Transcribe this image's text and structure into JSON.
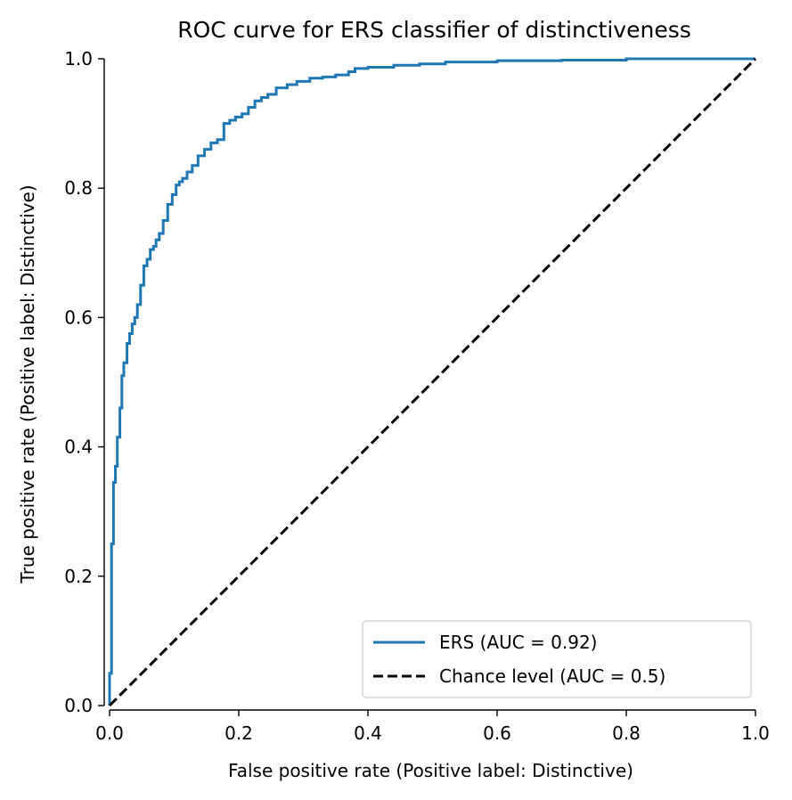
{
  "chart_data": {
    "type": "line",
    "title": "ROC curve for ERS classifier of distinctiveness",
    "xlabel": "False positive rate (Positive label: Distinctive)",
    "ylabel": "True positive rate (Positive label: Distinctive)",
    "xlim": [
      0.0,
      1.0
    ],
    "ylim": [
      0.0,
      1.0
    ],
    "xticks": [
      0.0,
      0.2,
      0.4,
      0.6,
      0.8,
      1.0
    ],
    "xtick_labels": [
      "0.0",
      "0.2",
      "0.4",
      "0.6",
      "0.8",
      "1.0"
    ],
    "yticks": [
      0.0,
      0.2,
      0.4,
      0.6,
      0.8,
      1.0
    ],
    "ytick_labels": [
      "0.0",
      "0.2",
      "0.4",
      "0.6",
      "0.8",
      "1.0"
    ],
    "grid": false,
    "legend_position": "lower-right",
    "series": [
      {
        "name": "ERS (AUC = 0.92)",
        "color": "#1f77b4",
        "style": "steps",
        "x": [
          0.0,
          0.0,
          0.003,
          0.003,
          0.006,
          0.006,
          0.009,
          0.009,
          0.012,
          0.012,
          0.016,
          0.016,
          0.019,
          0.019,
          0.022,
          0.022,
          0.027,
          0.027,
          0.031,
          0.031,
          0.035,
          0.035,
          0.039,
          0.039,
          0.043,
          0.043,
          0.048,
          0.048,
          0.053,
          0.053,
          0.058,
          0.058,
          0.063,
          0.063,
          0.068,
          0.068,
          0.072,
          0.072,
          0.077,
          0.077,
          0.083,
          0.083,
          0.09,
          0.09,
          0.097,
          0.097,
          0.103,
          0.103,
          0.108,
          0.108,
          0.113,
          0.113,
          0.12,
          0.12,
          0.128,
          0.128,
          0.137,
          0.137,
          0.147,
          0.147,
          0.157,
          0.157,
          0.167,
          0.167,
          0.177,
          0.177,
          0.186,
          0.186,
          0.195,
          0.195,
          0.205,
          0.205,
          0.215,
          0.215,
          0.225,
          0.225,
          0.235,
          0.235,
          0.245,
          0.245,
          0.258,
          0.258,
          0.275,
          0.275,
          0.29,
          0.29,
          0.31,
          0.31,
          0.33,
          0.33,
          0.35,
          0.35,
          0.37,
          0.37,
          0.38,
          0.38,
          0.4,
          0.4,
          0.44,
          0.44,
          0.48,
          0.48,
          0.52,
          0.52,
          0.6,
          0.6,
          0.7,
          0.7,
          0.8,
          0.8,
          0.9,
          0.9,
          1.0
        ],
        "y": [
          0.0,
          0.05,
          0.05,
          0.25,
          0.25,
          0.345,
          0.345,
          0.37,
          0.37,
          0.415,
          0.415,
          0.46,
          0.46,
          0.51,
          0.51,
          0.53,
          0.53,
          0.56,
          0.56,
          0.575,
          0.575,
          0.59,
          0.59,
          0.6,
          0.6,
          0.62,
          0.62,
          0.65,
          0.65,
          0.68,
          0.68,
          0.69,
          0.69,
          0.705,
          0.705,
          0.71,
          0.71,
          0.72,
          0.72,
          0.73,
          0.73,
          0.75,
          0.75,
          0.775,
          0.775,
          0.79,
          0.79,
          0.805,
          0.805,
          0.81,
          0.81,
          0.815,
          0.815,
          0.825,
          0.825,
          0.835,
          0.835,
          0.85,
          0.85,
          0.86,
          0.86,
          0.87,
          0.87,
          0.875,
          0.875,
          0.9,
          0.9,
          0.905,
          0.905,
          0.91,
          0.91,
          0.915,
          0.915,
          0.925,
          0.925,
          0.935,
          0.935,
          0.94,
          0.94,
          0.945,
          0.945,
          0.955,
          0.955,
          0.96,
          0.96,
          0.965,
          0.965,
          0.97,
          0.97,
          0.972,
          0.972,
          0.975,
          0.975,
          0.98,
          0.98,
          0.985,
          0.985,
          0.987,
          0.987,
          0.99,
          0.99,
          0.992,
          0.992,
          0.995,
          0.995,
          0.997,
          0.997,
          0.998,
          0.998,
          1.0,
          1.0,
          1.0,
          1.0
        ]
      },
      {
        "name": "Chance level (AUC = 0.5)",
        "color": "#000000",
        "style": "dashed",
        "x": [
          0.0,
          1.0
        ],
        "y": [
          0.0,
          1.0
        ]
      }
    ]
  }
}
